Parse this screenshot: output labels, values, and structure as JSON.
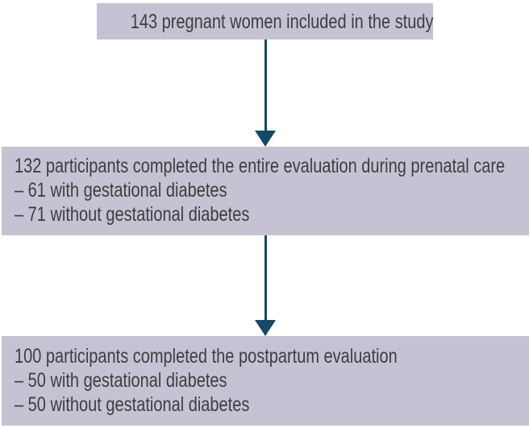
{
  "colors": {
    "background": "#ffffff",
    "box_fill": "#c5c2d3",
    "arrow": "#154a66",
    "text": "#3e3e3e"
  },
  "boxes": [
    {
      "id": "included",
      "lines": [
        "143 pregnant women included in the study"
      ]
    },
    {
      "id": "prenatal",
      "lines": [
        "132 participants completed the entire evaluation during prenatal care",
        "– 61 with gestational diabetes",
        "– 71 without gestational diabetes"
      ]
    },
    {
      "id": "postpartum",
      "lines": [
        "100 participants completed the postpartum evaluation",
        "– 50 with gestational diabetes",
        "– 50 without gestational diabetes"
      ]
    }
  ],
  "arrows": [
    {
      "from": "included",
      "to": "prenatal",
      "direction": "down"
    },
    {
      "from": "prenatal",
      "to": "postpartum",
      "direction": "down"
    }
  ]
}
